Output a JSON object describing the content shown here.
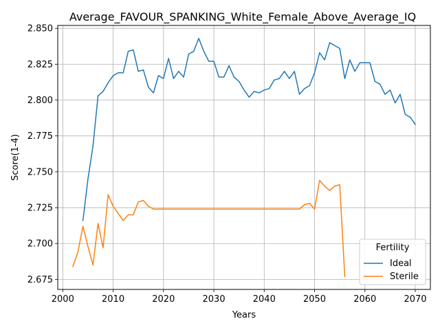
{
  "chart_data": {
    "type": "line",
    "title": "Average_FAVOUR_SPANKING_White_Female_Above_Average_IQ",
    "xlabel": "Years",
    "ylabel": "Score(1-4)",
    "xlim": [
      1999,
      2073
    ],
    "ylim": [
      2.668,
      2.852
    ],
    "xticks": [
      2000,
      2010,
      2020,
      2030,
      2040,
      2050,
      2060,
      2070
    ],
    "yticks": [
      2.675,
      2.7,
      2.725,
      2.75,
      2.775,
      2.8,
      2.825,
      2.85
    ],
    "ytick_labels": [
      "2.675",
      "2.700",
      "2.725",
      "2.750",
      "2.775",
      "2.800",
      "2.825",
      "2.850"
    ],
    "grid": true,
    "legend": {
      "title": "Fertility",
      "placement": "lower-right"
    },
    "series": [
      {
        "name": "Ideal",
        "color": "#1f77b4",
        "x": [
          2004,
          2005,
          2006,
          2007,
          2008,
          2009,
          2010,
          2011,
          2012,
          2013,
          2014,
          2015,
          2016,
          2017,
          2018,
          2019,
          2020,
          2021,
          2022,
          2023,
          2024,
          2025,
          2026,
          2027,
          2028,
          2029,
          2030,
          2031,
          2032,
          2033,
          2034,
          2035,
          2036,
          2037,
          2038,
          2039,
          2040,
          2041,
          2042,
          2043,
          2044,
          2045,
          2046,
          2047,
          2048,
          2049,
          2050,
          2051,
          2052,
          2053,
          2054,
          2055,
          2056,
          2057,
          2058,
          2059,
          2060,
          2061,
          2062,
          2063,
          2064,
          2065,
          2066,
          2067,
          2068,
          2069,
          2070
        ],
        "y": [
          2.716,
          2.745,
          2.768,
          2.803,
          2.806,
          2.812,
          2.817,
          2.819,
          2.819,
          2.834,
          2.835,
          2.82,
          2.821,
          2.809,
          2.805,
          2.817,
          2.815,
          2.829,
          2.815,
          2.82,
          2.816,
          2.832,
          2.834,
          2.843,
          2.834,
          2.827,
          2.827,
          2.816,
          2.816,
          2.824,
          2.816,
          2.813,
          2.807,
          2.802,
          2.806,
          2.805,
          2.807,
          2.808,
          2.814,
          2.815,
          2.82,
          2.815,
          2.82,
          2.804,
          2.808,
          2.81,
          2.819,
          2.833,
          2.828,
          2.84,
          2.838,
          2.836,
          2.815,
          2.828,
          2.82,
          2.826,
          2.826,
          2.826,
          2.813,
          2.811,
          2.804,
          2.807,
          2.798,
          2.804,
          2.79,
          2.788,
          2.783
        ]
      },
      {
        "name": "Sterile",
        "color": "#ff7f0e",
        "x": [
          2002,
          2003,
          2004,
          2005,
          2006,
          2007,
          2008,
          2009,
          2010,
          2011,
          2012,
          2013,
          2014,
          2015,
          2016,
          2017,
          2018,
          2019,
          2020,
          2021,
          2022,
          2023,
          2024,
          2025,
          2026,
          2027,
          2028,
          2029,
          2030,
          2031,
          2032,
          2033,
          2034,
          2035,
          2036,
          2037,
          2038,
          2039,
          2040,
          2041,
          2042,
          2043,
          2044,
          2045,
          2046,
          2047,
          2048,
          2049,
          2050,
          2051,
          2052,
          2053,
          2054,
          2055,
          2056
        ],
        "y": [
          2.684,
          2.694,
          2.712,
          2.698,
          2.685,
          2.714,
          2.697,
          2.734,
          2.726,
          2.721,
          2.716,
          2.72,
          2.72,
          2.729,
          2.73,
          2.726,
          2.724,
          2.724,
          2.724,
          2.724,
          2.724,
          2.724,
          2.724,
          2.724,
          2.724,
          2.724,
          2.724,
          2.724,
          2.724,
          2.724,
          2.724,
          2.724,
          2.724,
          2.724,
          2.724,
          2.724,
          2.724,
          2.724,
          2.724,
          2.724,
          2.724,
          2.724,
          2.724,
          2.724,
          2.724,
          2.724,
          2.727,
          2.728,
          2.724,
          2.744,
          2.74,
          2.737,
          2.74,
          2.741,
          2.677
        ]
      }
    ]
  }
}
